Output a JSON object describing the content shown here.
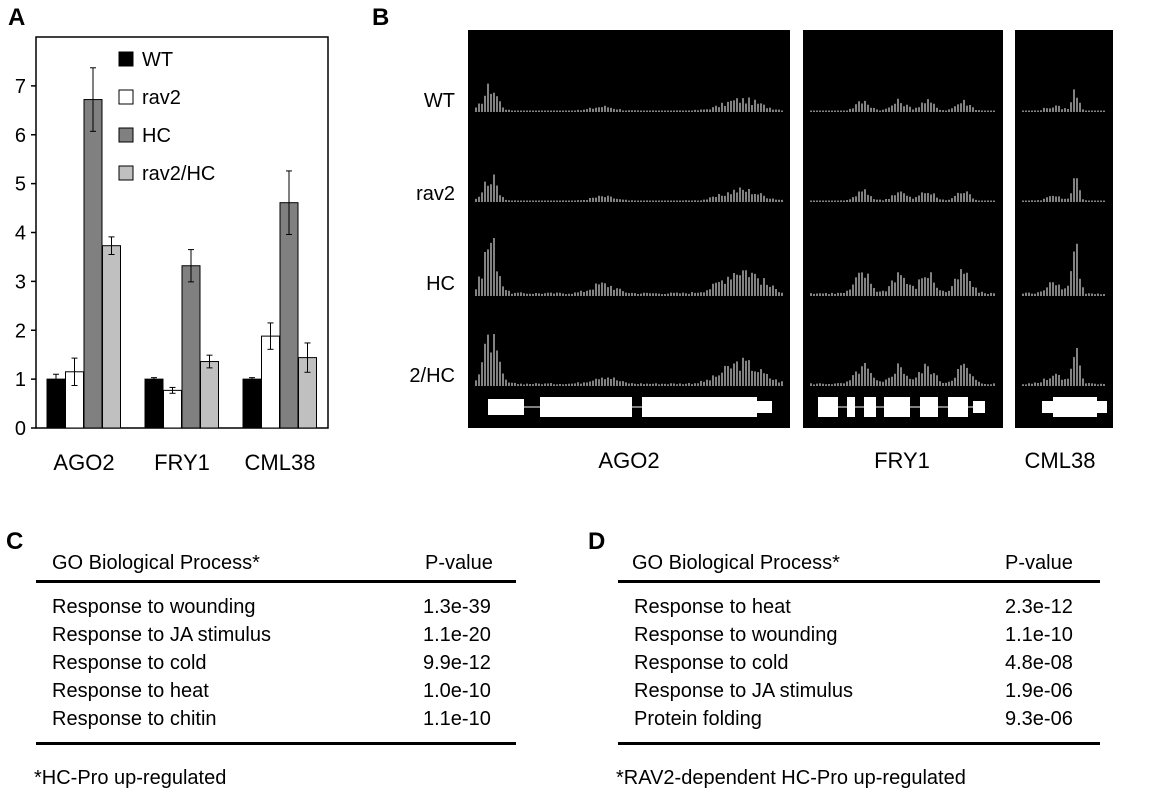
{
  "panel_labels": {
    "a": "A",
    "b": "B",
    "c": "C",
    "d": "D"
  },
  "chart_data": [
    {
      "type": "bar",
      "categories": [
        "AGO2",
        "FRY1",
        "CML38"
      ],
      "series": [
        {
          "name": "WT",
          "color": "#000000",
          "values": [
            1.0,
            1.0,
            1.0
          ],
          "errors": [
            0.1,
            0.03,
            0.03
          ]
        },
        {
          "name": "rav2",
          "color": "#ffffff",
          "values": [
            1.15,
            0.77,
            1.88
          ],
          "errors": [
            0.28,
            0.06,
            0.27
          ]
        },
        {
          "name": "HC",
          "color": "#808080",
          "values": [
            6.72,
            3.32,
            4.61
          ],
          "errors": [
            0.65,
            0.33,
            0.65
          ]
        },
        {
          "name": "rav2/HC",
          "color": "#c0c0c0",
          "values": [
            3.73,
            1.36,
            1.44
          ],
          "errors": [
            0.18,
            0.13,
            0.3
          ]
        }
      ],
      "ylim": [
        0,
        8
      ],
      "yticks": [
        "0",
        "1",
        "2",
        "3",
        "4",
        "5",
        "6",
        "7"
      ],
      "legend_position": "top-right",
      "grid": false,
      "error_bars": true
    }
  ],
  "panel_b": {
    "row_labels": [
      "WT",
      "rav2",
      "HC",
      "rav2/HC"
    ],
    "gene_labels": [
      "AGO2",
      "FRY1",
      "CML38"
    ]
  },
  "table_c": {
    "header_name": "GO Biological Process*",
    "header_p": "P-value",
    "rows": [
      {
        "name": "Response to wounding",
        "p": "1.3e-39"
      },
      {
        "name": "Response to JA stimulus",
        "p": "1.1e-20"
      },
      {
        "name": "Response to cold",
        "p": "9.9e-12"
      },
      {
        "name": "Response to heat",
        "p": "1.0e-10"
      },
      {
        "name": "Response to chitin",
        "p": "1.1e-10"
      }
    ],
    "footnote": "*HC-Pro up-regulated"
  },
  "table_d": {
    "header_name": "GO Biological Process*",
    "header_p": "P-value",
    "rows": [
      {
        "name": "Response to heat",
        "p": "2.3e-12"
      },
      {
        "name": "Response to wounding",
        "p": "1.1e-10"
      },
      {
        "name": "Response to cold",
        "p": "4.8e-08"
      },
      {
        "name": "Response to JA stimulus",
        "p": "1.9e-06"
      },
      {
        "name": "Protein folding",
        "p": "9.3e-06"
      }
    ],
    "footnote": "*RAV2-dependent HC-Pro up-regulated"
  }
}
